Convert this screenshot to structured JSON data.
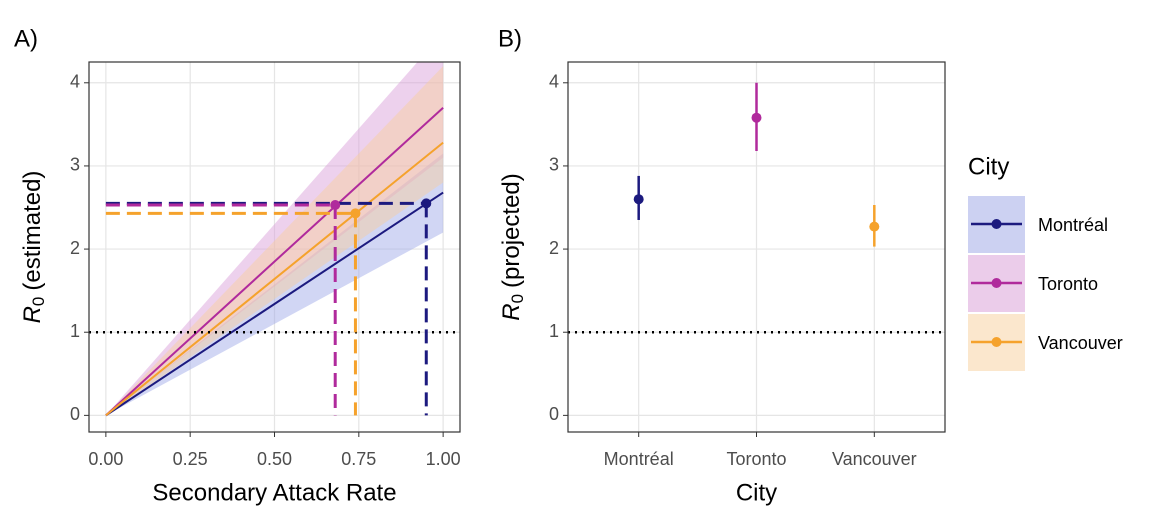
{
  "chart_data": [
    {
      "type": "line",
      "panel_label": "A)",
      "x_label": "Secondary Attack Rate",
      "y_label": {
        "symbol": "R",
        "subscript": "0",
        "text": "(estimated)"
      },
      "x": [
        0,
        1
      ],
      "series": [
        {
          "name": "Montréal",
          "color": "#1c1a7f",
          "band_color": "#9aa3e6",
          "values": [
            0,
            2.68
          ],
          "lower": [
            0,
            2.2
          ],
          "upper": [
            0,
            3.15
          ],
          "point": {
            "x": 0.95,
            "y": 2.55
          }
        },
        {
          "name": "Toronto",
          "color": "#b02a9c",
          "band_color": "#d79ad6",
          "values": [
            0,
            3.7
          ],
          "lower": [
            0,
            3.1
          ],
          "upper": [
            0,
            4.6
          ],
          "point": {
            "x": 0.68,
            "y": 2.53
          }
        },
        {
          "name": "Vancouver",
          "color": "#f5a22c",
          "band_color": "#f8cf9c",
          "values": [
            0,
            3.28
          ],
          "lower": [
            0,
            2.8
          ],
          "upper": [
            0,
            4.2
          ],
          "point": {
            "x": 0.74,
            "y": 2.43
          }
        }
      ],
      "hline": 1,
      "xlim": [
        -0.05,
        1.05
      ],
      "xticks": [
        {
          "value": 0,
          "label": "0.00"
        },
        {
          "value": 0.25,
          "label": "0.25"
        },
        {
          "value": 0.5,
          "label": "0.50"
        },
        {
          "value": 0.75,
          "label": "0.75"
        },
        {
          "value": 1,
          "label": "1.00"
        }
      ],
      "ylim": [
        -0.2,
        4.25
      ],
      "yticks": [
        0,
        1,
        2,
        3,
        4
      ],
      "grid": true
    },
    {
      "type": "pointrange",
      "panel_label": "B)",
      "x_label": "City",
      "y_label": {
        "symbol": "R",
        "subscript": "0",
        "text": "(projected)"
      },
      "categories": [
        "Montréal",
        "Toronto",
        "Vancouver"
      ],
      "values": [
        2.6,
        3.58,
        2.27
      ],
      "lower": [
        2.35,
        3.18,
        2.03
      ],
      "upper": [
        2.88,
        4.0,
        2.53
      ],
      "colors": [
        "#1c1a7f",
        "#b02a9c",
        "#f5a22c"
      ],
      "hline": 1,
      "ylim": [
        -0.2,
        4.25
      ],
      "yticks": [
        0,
        1,
        2,
        3,
        4
      ],
      "grid": true,
      "legend_title": "City"
    }
  ]
}
